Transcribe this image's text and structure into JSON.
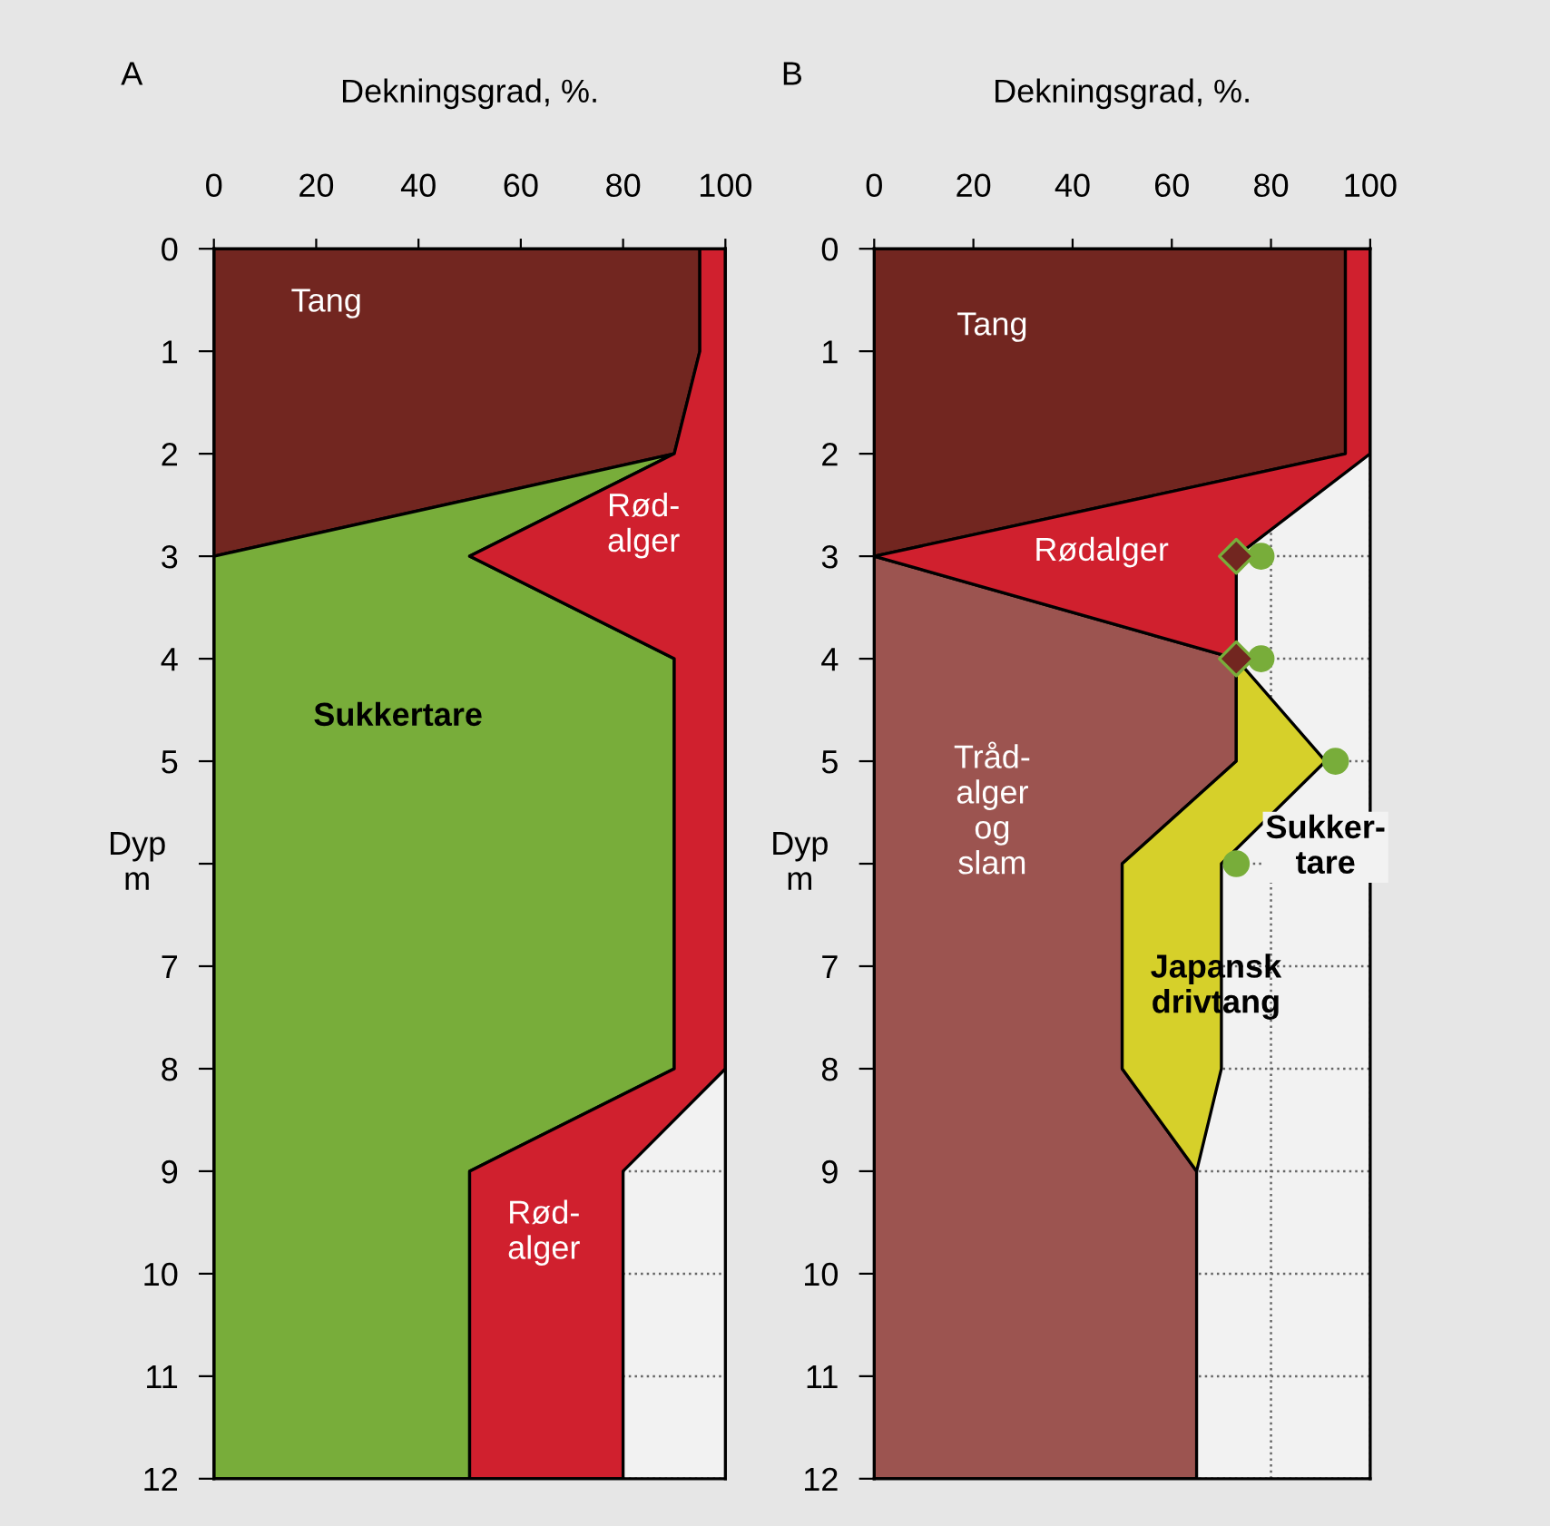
{
  "chart_data": [
    {
      "type": "area",
      "title": "A",
      "xlabel": "Dekningsgrad, %.",
      "ylabel": "Dyp\nm",
      "orientation": "horizontal",
      "stacked": true,
      "x": [
        0,
        1,
        2,
        3,
        4,
        8,
        9,
        12
      ],
      "series": [
        {
          "color": "#722620",
          "values": [
            95,
            95,
            90,
            0,
            null,
            null,
            null,
            null
          ]
        },
        {
          "color": "#78ad3a",
          "values": [
            null,
            null,
            0,
            50,
            90,
            90,
            50,
            50
          ]
        },
        {
          "color": "#d0202e",
          "values": [
            5,
            5,
            10,
            50,
            10,
            10,
            30,
            30
          ]
        }
      ],
      "xlim": [
        0,
        100
      ],
      "xticks": [
        0,
        20,
        40,
        60,
        80,
        100
      ],
      "ylim": [
        12,
        0
      ],
      "yticks": [
        0,
        1,
        2,
        3,
        4,
        5,
        {
          "value": 6,
          "label": null
        },
        7,
        8,
        9,
        10,
        11,
        12
      ],
      "grid": true,
      "annotations": [
        "Tang",
        "Rød-\nalger",
        "Sukkertare",
        "Rød-\nalger"
      ]
    },
    {
      "type": "area",
      "title": "B",
      "xlabel": "Dekningsgrad, %.",
      "ylabel": "Dyp\nm",
      "orientation": "horizontal",
      "stacked": true,
      "x": [
        0,
        2,
        3,
        4,
        5,
        6,
        8,
        9,
        12
      ],
      "series": [
        {
          "color": "#722620",
          "values": [
            95,
            95,
            0,
            null,
            null,
            null,
            null,
            null,
            null
          ]
        },
        {
          "color": "#9c5450",
          "values": [
            null,
            null,
            0,
            73,
            73,
            50,
            50,
            65,
            65
          ]
        },
        {
          "color": "#d6d02a",
          "values": [
            null,
            null,
            null,
            0,
            18,
            20,
            20,
            0,
            null
          ]
        },
        {
          "color": "#d0202e",
          "values": [
            5,
            5,
            73,
            0,
            null,
            null,
            null,
            null,
            null
          ]
        },
        {
          "type": "scatter",
          "marker": "diamond",
          "color": "#722620",
          "x": [
            3,
            4
          ],
          "values": [
            73,
            73
          ]
        },
        {
          "type": "scatter",
          "marker": "circle",
          "color": "#78ad3a",
          "x": [
            3,
            4,
            5,
            6
          ],
          "values": [
            78,
            78,
            93,
            73
          ]
        }
      ],
      "xlim": [
        0,
        100
      ],
      "xticks": [
        0,
        20,
        40,
        60,
        80,
        100
      ],
      "ylim": [
        12,
        0
      ],
      "yticks": [
        0,
        1,
        2,
        3,
        4,
        5,
        {
          "value": 6,
          "label": null
        },
        7,
        8,
        9,
        10,
        11,
        12
      ],
      "grid": true,
      "annotations": [
        "Tang",
        "Rødalger",
        "Tråd-\nalger\nog\nslam",
        "Sukker-\ntare",
        "Japansk\ndrivtang"
      ]
    }
  ]
}
